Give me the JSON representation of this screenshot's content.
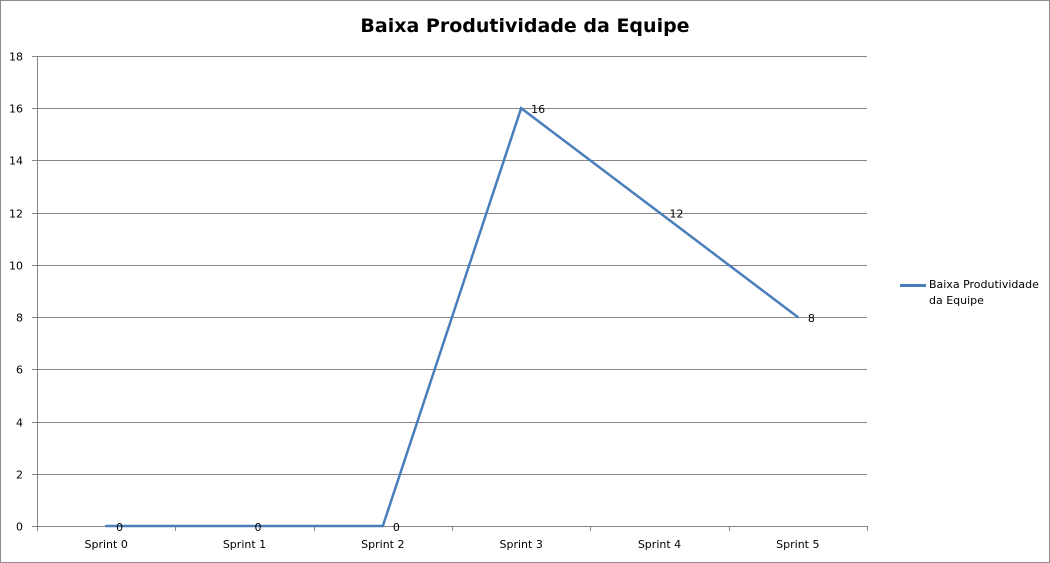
{
  "chart_data": {
    "type": "line",
    "title": "Baixa Produtividade da Equipe",
    "xlabel": "",
    "ylabel": "",
    "categories": [
      "Sprint 0",
      "Sprint 1",
      "Sprint 2",
      "Sprint 3",
      "Sprint 4",
      "Sprint 5"
    ],
    "series": [
      {
        "name": "Baixa Produtividade da Equipe",
        "values": [
          0,
          0,
          0,
          16,
          12,
          8
        ],
        "color": "#4a7ebb"
      }
    ],
    "ylim": [
      0,
      18
    ],
    "yticks": [
      0,
      2,
      4,
      6,
      8,
      10,
      12,
      14,
      16,
      18
    ],
    "grid": "horizontal",
    "data_labels": true,
    "legend_position": "right"
  }
}
